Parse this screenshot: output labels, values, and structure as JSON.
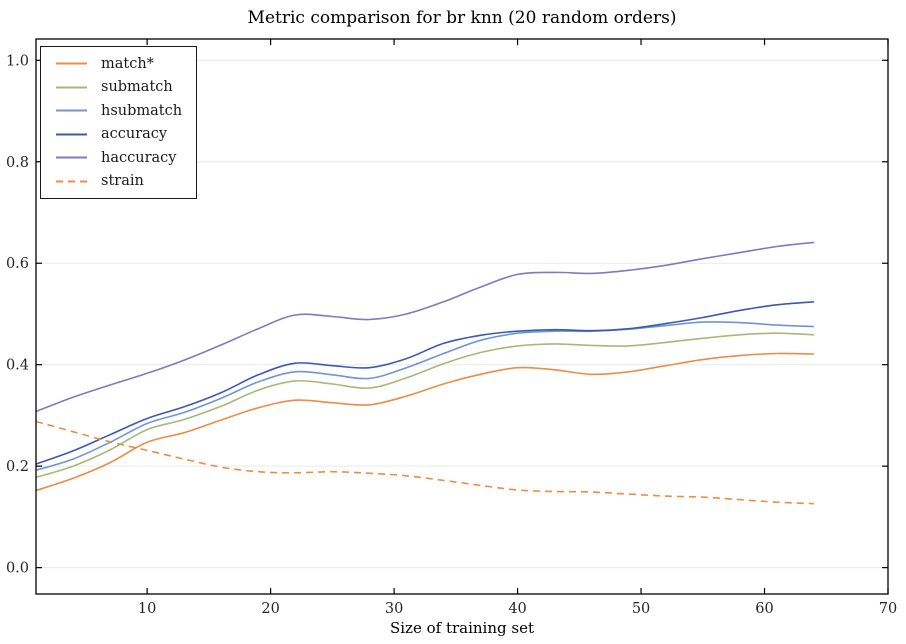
{
  "chart_data": {
    "type": "line",
    "title": "Metric comparison for br knn (20 random orders)",
    "xlabel": "Size of training set",
    "ylabel": "",
    "xlim": [
      1,
      70
    ],
    "ylim": [
      -0.052,
      1.042
    ],
    "xticks": [
      10,
      20,
      30,
      40,
      50,
      60,
      70
    ],
    "yticks": [
      0.0,
      0.2,
      0.4,
      0.6,
      0.8,
      1.0
    ],
    "grid": "horizontal-light",
    "legend_position": "upper-left",
    "x": [
      1,
      4,
      7,
      10,
      13,
      16,
      19,
      22,
      25,
      28,
      31,
      34,
      37,
      40,
      43,
      46,
      49,
      52,
      55,
      58,
      61,
      64
    ],
    "series": [
      {
        "name": "match*",
        "color": "#EC8C46",
        "dash": false,
        "values": [
          0.152,
          0.176,
          0.207,
          0.247,
          0.266,
          0.291,
          0.315,
          0.33,
          0.325,
          0.321,
          0.338,
          0.362,
          0.381,
          0.394,
          0.39,
          0.381,
          0.386,
          0.398,
          0.41,
          0.418,
          0.422,
          0.421
        ]
      },
      {
        "name": "submatch",
        "color": "#A9B778",
        "dash": false,
        "values": [
          0.178,
          0.2,
          0.232,
          0.272,
          0.292,
          0.318,
          0.35,
          0.368,
          0.362,
          0.354,
          0.374,
          0.402,
          0.424,
          0.437,
          0.441,
          0.438,
          0.437,
          0.444,
          0.452,
          0.459,
          0.462,
          0.459
        ]
      },
      {
        "name": "hsubmatch",
        "color": "#6F96D2",
        "dash": false,
        "values": [
          0.192,
          0.214,
          0.247,
          0.284,
          0.306,
          0.334,
          0.366,
          0.386,
          0.38,
          0.373,
          0.394,
          0.422,
          0.448,
          0.462,
          0.466,
          0.466,
          0.47,
          0.477,
          0.484,
          0.483,
          0.478,
          0.475
        ]
      },
      {
        "name": "accuracy",
        "color": "#3C58B4",
        "dash": false,
        "values": [
          0.204,
          0.23,
          0.262,
          0.294,
          0.317,
          0.345,
          0.38,
          0.403,
          0.398,
          0.394,
          0.412,
          0.442,
          0.458,
          0.466,
          0.469,
          0.467,
          0.471,
          0.481,
          0.493,
          0.507,
          0.518,
          0.524
        ]
      },
      {
        "name": "haccuracy",
        "color": "#8279BE",
        "dash": false,
        "values": [
          0.308,
          0.336,
          0.36,
          0.383,
          0.409,
          0.439,
          0.471,
          0.498,
          0.495,
          0.489,
          0.5,
          0.524,
          0.553,
          0.578,
          0.582,
          0.58,
          0.586,
          0.596,
          0.609,
          0.621,
          0.633,
          0.641
        ]
      },
      {
        "name": "strain",
        "color": "#EC8C46",
        "dash": true,
        "values": [
          0.288,
          0.268,
          0.248,
          0.231,
          0.214,
          0.198,
          0.189,
          0.187,
          0.189,
          0.186,
          0.181,
          0.172,
          0.162,
          0.153,
          0.15,
          0.149,
          0.145,
          0.141,
          0.139,
          0.134,
          0.129,
          0.126
        ]
      }
    ]
  },
  "style_colors": {
    "spine": "#000000",
    "grid": "#e9e9e9",
    "tick_label": "#262626",
    "title": "#000000"
  }
}
